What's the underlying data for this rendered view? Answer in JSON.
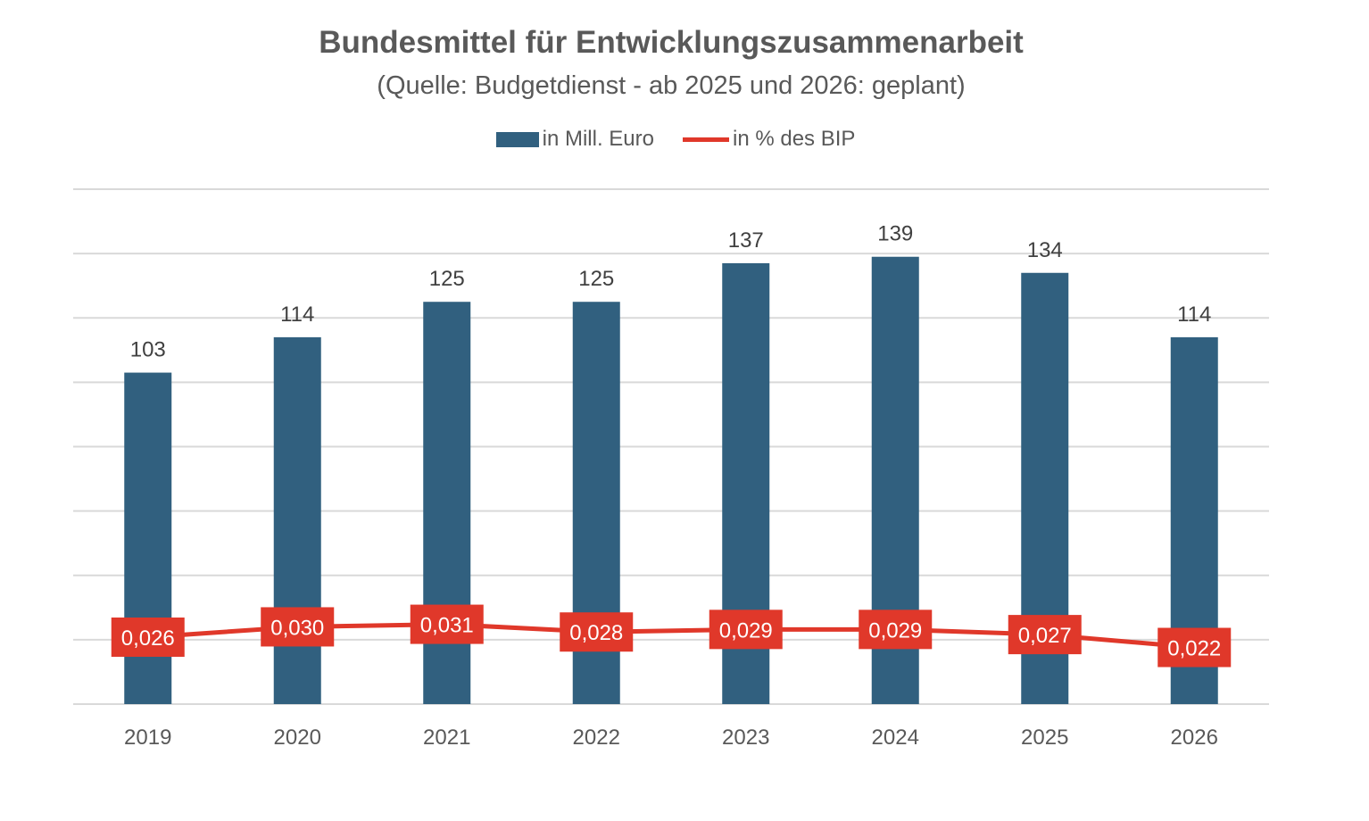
{
  "colors": {
    "bar": "#31607f",
    "line": "#e0382a",
    "grid": "#d9d9d9",
    "text": "#595959",
    "label_text": "#404040"
  },
  "chart_data": {
    "type": "bar",
    "title": "Bundesmittel für Entwicklungszusammenarbeit",
    "subtitle": "(Quelle: Budgetdienst - ab 2025 und 2026: geplant)",
    "categories": [
      "2019",
      "2020",
      "2021",
      "2022",
      "2023",
      "2024",
      "2025",
      "2026"
    ],
    "series": [
      {
        "name": "in Mill. Euro",
        "type": "bar",
        "axis": "left",
        "values": [
          103,
          114,
          125,
          125,
          137,
          139,
          134,
          114
        ],
        "labels": [
          "103",
          "114",
          "125",
          "125",
          "137",
          "139",
          "134",
          "114"
        ]
      },
      {
        "name": "in % des BIP",
        "type": "line",
        "axis": "right",
        "values": [
          0.026,
          0.03,
          0.031,
          0.028,
          0.029,
          0.029,
          0.027,
          0.022
        ],
        "labels": [
          "0,026",
          "0,030",
          "0,031",
          "0,028",
          "0,029",
          "0,029",
          "0,027",
          "0,022"
        ]
      }
    ],
    "ylim": [
      0,
      160
    ],
    "y2lim": [
      0,
      0.2
    ],
    "grid": true,
    "legend_position": "top-center"
  }
}
